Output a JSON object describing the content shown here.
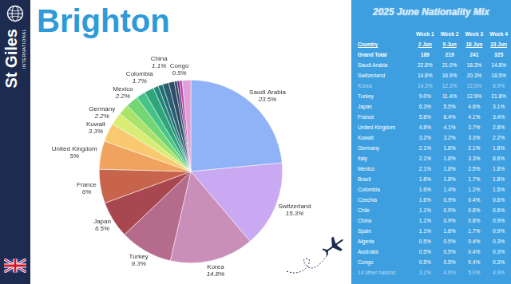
{
  "brand": {
    "name": "St Giles",
    "subtitle": "INTERNATIONAL"
  },
  "chart_data": {
    "type": "pie",
    "title": "Brighton",
    "categories": [
      "Saudi Arabia",
      "Switzerland",
      "Korea",
      "Turkey",
      "Japan",
      "France",
      "United Kingdom",
      "Kuwait",
      "Germany",
      null,
      "Mexico",
      null,
      "Colombia",
      null,
      null,
      "China",
      null,
      null,
      null,
      "Congo",
      null
    ],
    "values": [
      23.5,
      15.3,
      14.8,
      9.3,
      6.5,
      6,
      5,
      3.3,
      2.2,
      1.9,
      2.2,
      1.6,
      1.7,
      0.9,
      0.8,
      1.1,
      1.0,
      0.5,
      0.4,
      0.5,
      1.5
    ],
    "value_labels": [
      "23.5%",
      "15.3%",
      "14.8%",
      "9.3%",
      "6.5%",
      "6%",
      "5%",
      "3.3%",
      "2.2%",
      null,
      "2.2%",
      null,
      "1.7%",
      null,
      null,
      "1.1%",
      null,
      null,
      null,
      "0.5%",
      null
    ],
    "colors": [
      "#8fb3f6",
      "#c9a9f1",
      "#c98fb9",
      "#b56b8b",
      "#a8474f",
      "#c9644c",
      "#f0a35f",
      "#f8c96f",
      "#d9ec74",
      "#a9e36a",
      "#72d675",
      "#45c486",
      "#2fa57c",
      "#23887a",
      "#1f6f74",
      "#2a5e6e",
      "#2c4d67",
      "#3a3f63",
      "#4c3468",
      "#c23fbf",
      "#e2a0d8"
    ],
    "data_labels": true
  },
  "table": {
    "title": "2025 June Nationality Mix",
    "weeks": [
      "Week 1",
      "Week 2",
      "Week 3",
      "Week 4"
    ],
    "country_header": "Country",
    "dates": [
      "2 Jun",
      "9 Jun",
      "16 Jun",
      "23 Jun"
    ],
    "total_label": "Grand Total",
    "totals": [
      189,
      219,
      241,
      325
    ],
    "rows": [
      [
        "Saudi Arabia",
        "22.8%",
        "21.0%",
        "18.3%",
        "14.8%"
      ],
      [
        "Switzerland",
        "14.8%",
        "16.9%",
        "20.3%",
        "18.5%"
      ],
      [
        "Korea",
        "14.3%",
        "12.3%",
        "12.0%",
        "8.9%"
      ],
      [
        "Turkey",
        "9.0%",
        "11.4%",
        "12.9%",
        "21.8%"
      ],
      [
        "Japan",
        "6.3%",
        "5.5%",
        "4.6%",
        "3.1%"
      ],
      [
        "France",
        "5.8%",
        "6.4%",
        "4.1%",
        "3.4%"
      ],
      [
        "United Kingdom",
        "4.8%",
        "4.1%",
        "3.7%",
        "2.8%"
      ],
      [
        "Kuwait",
        "3.2%",
        "3.2%",
        "3.3%",
        "2.2%"
      ],
      [
        "Germany",
        "2.1%",
        "1.8%",
        "2.1%",
        "1.8%"
      ],
      [
        "Italy",
        "2.1%",
        "1.8%",
        "3.3%",
        "8.6%"
      ],
      [
        "Mexico",
        "2.1%",
        "1.8%",
        "2.5%",
        "1.8%"
      ],
      [
        "Brazil",
        "1.6%",
        "1.8%",
        "1.7%",
        "1.8%"
      ],
      [
        "Colombia",
        "1.6%",
        "1.4%",
        "1.2%",
        "1.5%"
      ],
      [
        "Czechia",
        "1.6%",
        "0.9%",
        "0.4%",
        "0.6%"
      ],
      [
        "Chile",
        "1.1%",
        "0.9%",
        "0.8%",
        "0.6%"
      ],
      [
        "China",
        "1.1%",
        "0.9%",
        "0.8%",
        "0.9%"
      ],
      [
        "Spain",
        "1.1%",
        "1.8%",
        "1.7%",
        "0.9%"
      ],
      [
        "Algeria",
        "0.5%",
        "0.5%",
        "0.4%",
        "0.3%"
      ],
      [
        "Australia",
        "0.5%",
        "0.5%",
        "0.4%",
        "0.3%"
      ],
      [
        "Congo",
        "0.5%",
        "0.5%",
        "0.4%",
        "0.3%"
      ],
      [
        "14 other nations",
        "3.2%",
        "4.6%",
        "5.0%",
        "4.9%"
      ]
    ]
  }
}
